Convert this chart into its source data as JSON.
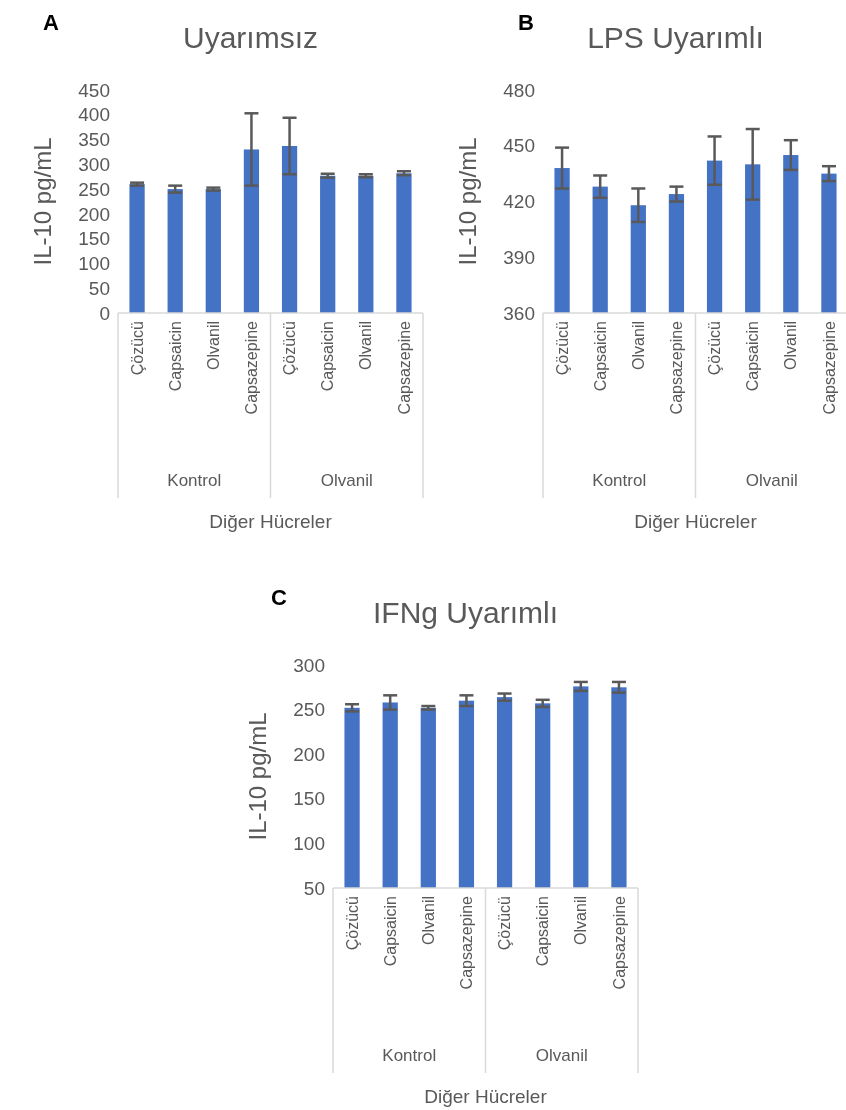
{
  "chart_data": [
    {
      "type": "bar",
      "title": "Uyarımsız",
      "xlabel": "Diğer Hücreler",
      "ylabel": "IL-10 pg/mL",
      "categories": [
        "Çözücü",
        "Capsaicin",
        "Olvanil",
        "Capsazepine",
        "Çözücü",
        "Capsaicin",
        "Olvanil",
        "Capsazepine"
      ],
      "values": [
        260,
        250,
        250,
        330,
        337,
        277,
        277,
        282
      ],
      "errors": [
        3,
        7,
        3,
        73,
        57,
        4,
        3,
        4
      ],
      "color": "#4472c4",
      "ylim": [
        0,
        450
      ],
      "yticks": [
        0,
        50,
        100,
        150,
        200,
        250,
        300,
        350,
        400,
        450
      ],
      "annotations": [
        "A",
        "Kontrol",
        "Olvanil"
      ]
    },
    {
      "type": "bar",
      "title": "LPS Uyarımlı",
      "xlabel": "Diğer Hücreler",
      "ylabel": "IL-10 pg/mL",
      "categories": [
        "Çözücü",
        "Capsaicin",
        "Olvanil",
        "Capsazepine",
        "Çözücü",
        "Capsaicin",
        "Olvanil",
        "Capsazepine"
      ],
      "values": [
        438,
        428,
        418,
        424,
        442,
        440,
        445,
        435
      ],
      "errors": [
        11,
        6,
        9,
        4,
        13,
        19,
        8,
        4
      ],
      "color": "#4472c4",
      "ylim": [
        360,
        480
      ],
      "yticks": [
        360,
        390,
        420,
        450,
        480
      ],
      "annotations": [
        "B",
        "Kontrol",
        "Olvanil"
      ]
    },
    {
      "type": "bar",
      "title": "IFNg Uyarımlı",
      "xlabel": "Diğer Hücreler",
      "ylabel": "IL-10 pg/mL",
      "categories": [
        "Çözücü",
        "Capsaicin",
        "Olvanil",
        "Capsazepine",
        "Çözücü",
        "Capsaicin",
        "Olvanil",
        "Capsazepine"
      ],
      "values": [
        252,
        258,
        252,
        260,
        264,
        257,
        276,
        275
      ],
      "errors": [
        4,
        8,
        2,
        6,
        4,
        4,
        5,
        6
      ],
      "color": "#4472c4",
      "ylim": [
        50,
        300
      ],
      "yticks": [
        50,
        100,
        150,
        200,
        250,
        300
      ],
      "annotations": [
        "C",
        "Kontrol",
        "Olvanil"
      ]
    }
  ]
}
